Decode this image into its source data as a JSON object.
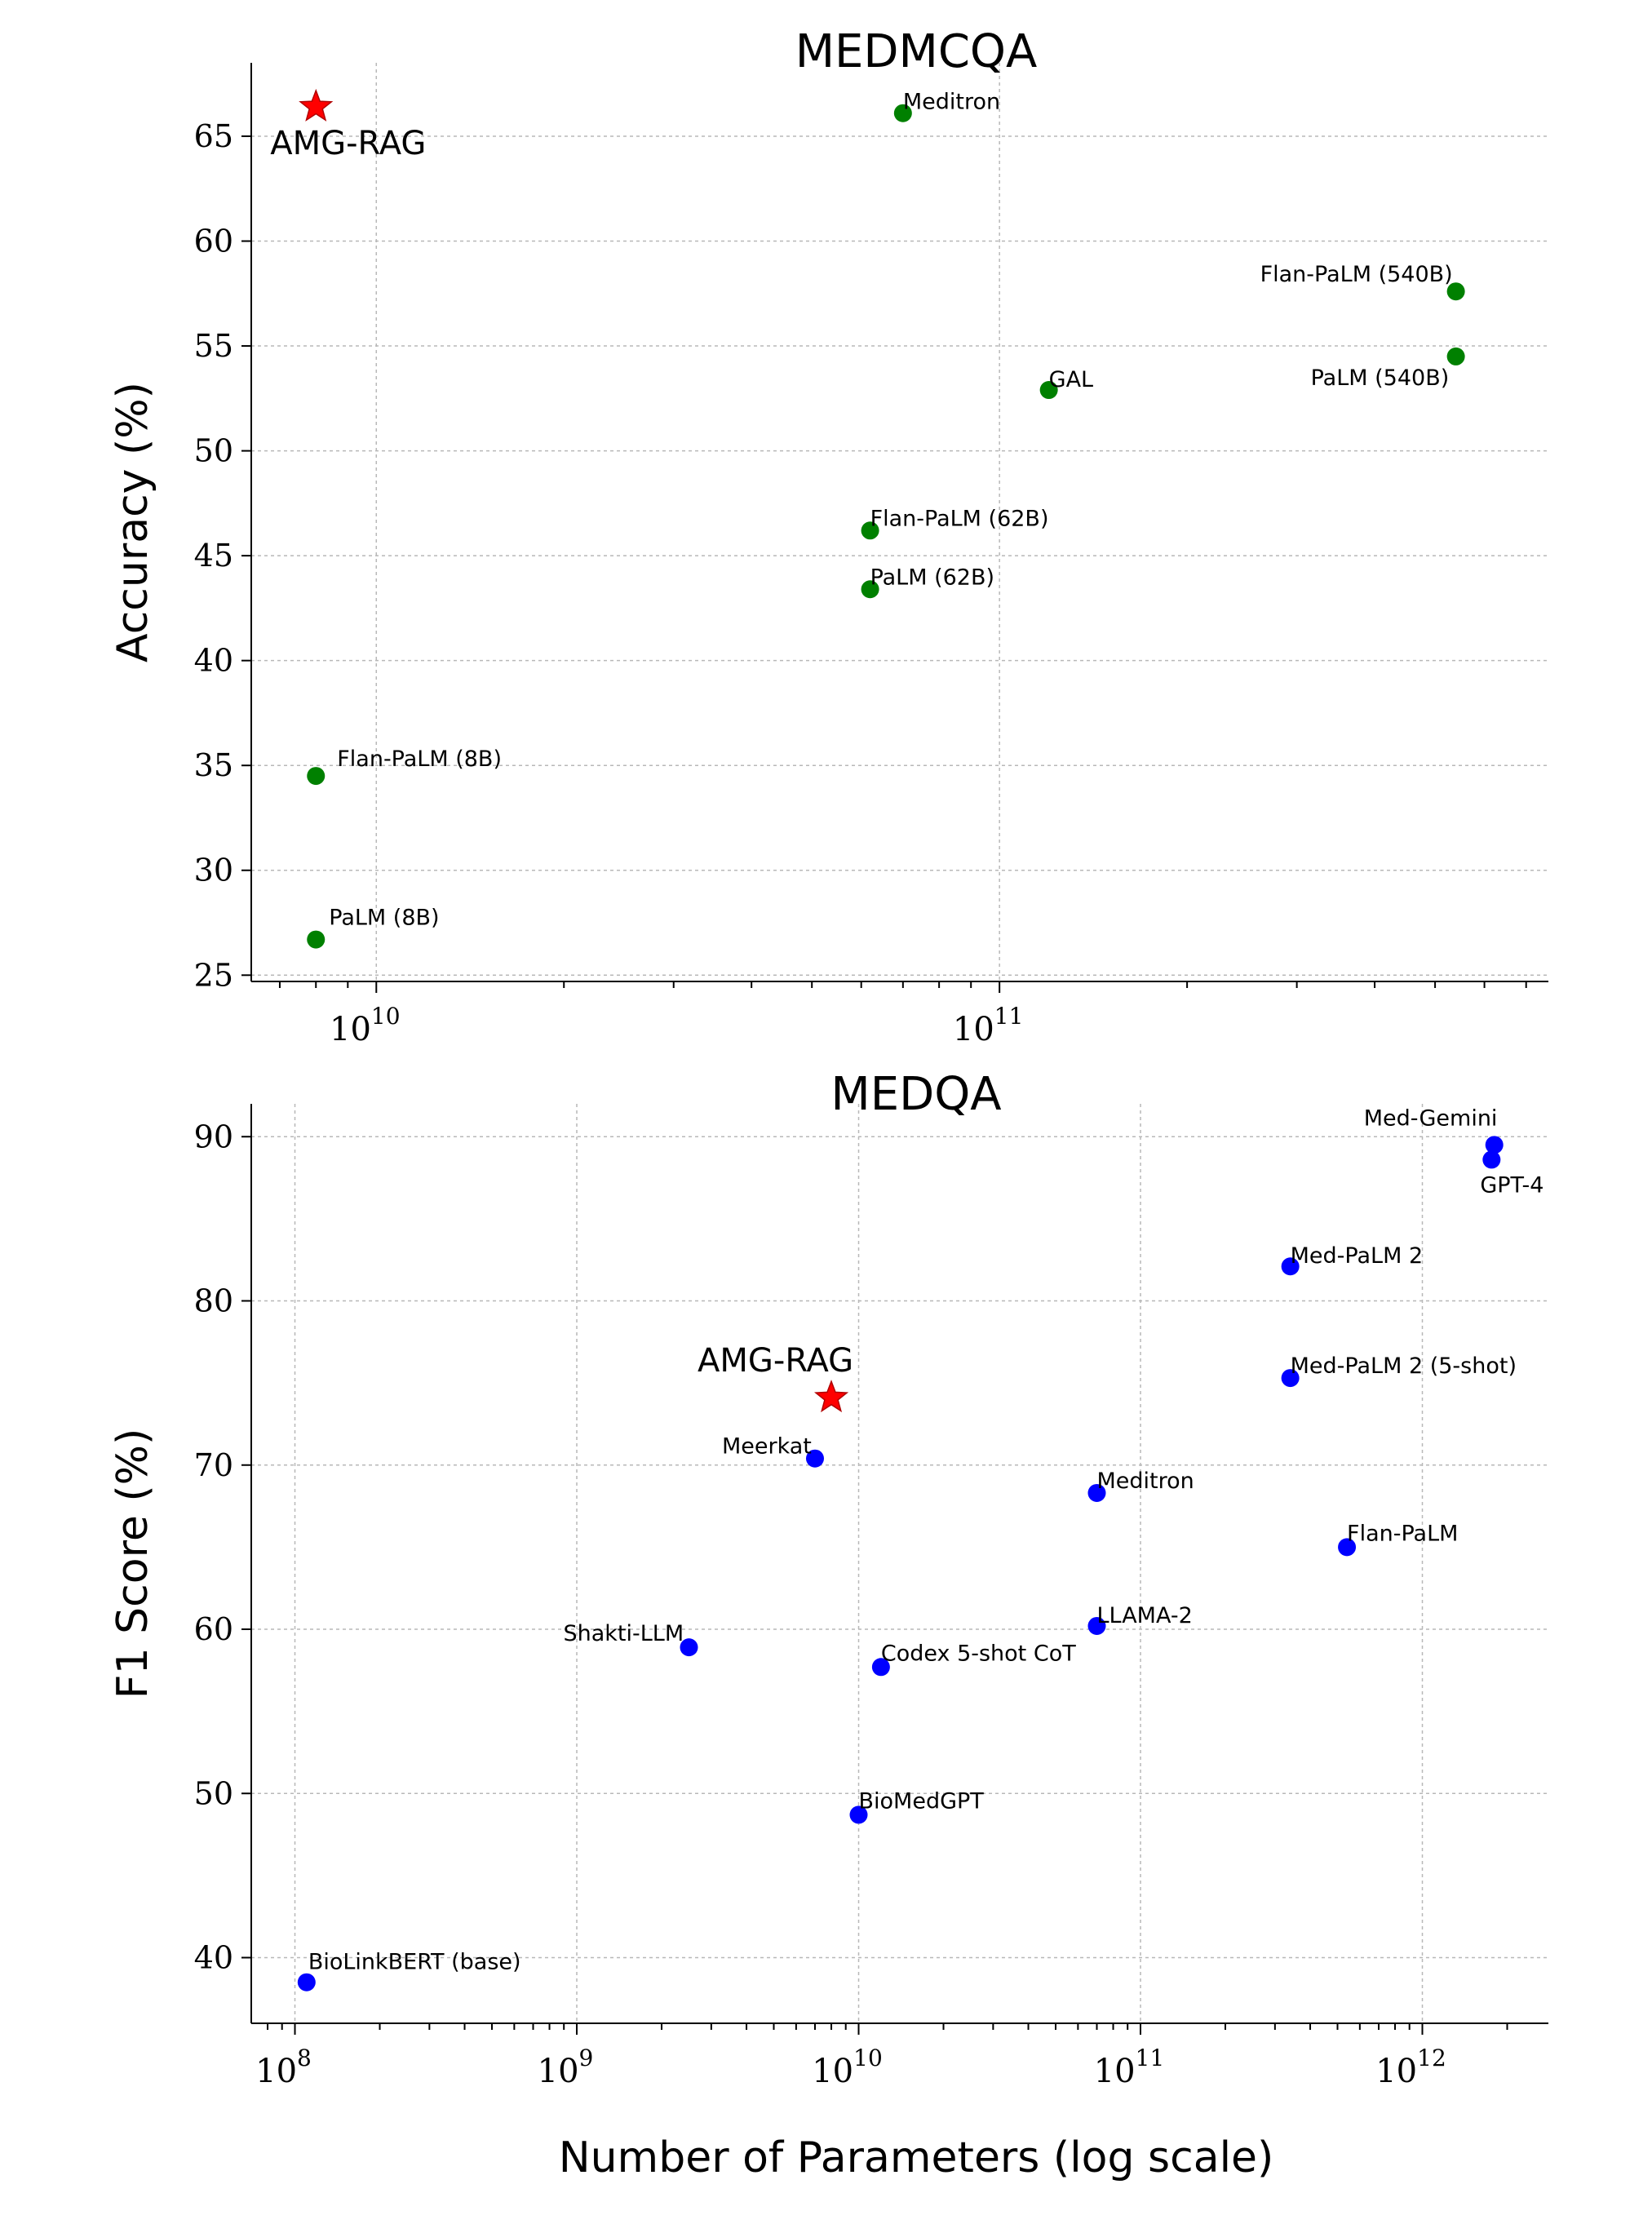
{
  "chart_data": [
    {
      "type": "scatter",
      "title": "MEDMCQA",
      "ylabel": "Accuracy (%)",
      "xlabel": "",
      "xscale": "log",
      "xlim": [
        6300000000.0,
        760000000000.0
      ],
      "ylim": [
        24.7,
        68.5
      ],
      "yticks": [
        "25",
        "30",
        "35",
        "40",
        "45",
        "50",
        "55",
        "60",
        "65"
      ],
      "xticks": [
        {
          "base": "10",
          "exp": "10"
        },
        {
          "base": "10",
          "exp": "11"
        }
      ],
      "marker_color": "#008000",
      "highlight_color": "#ff0000",
      "points": [
        {
          "name": "AMG-RAG",
          "x": 8000000000.0,
          "y": 66.4,
          "marker": "star"
        },
        {
          "name": "Meditron",
          "x": 70000000000.0,
          "y": 66.1
        },
        {
          "name": "Flan-PaLM (540B)",
          "x": 540000000000.0,
          "y": 57.6
        },
        {
          "name": "PaLM (540B)",
          "x": 540000000000.0,
          "y": 54.5
        },
        {
          "name": "GAL",
          "x": 120000000000.0,
          "y": 52.9
        },
        {
          "name": "Flan-PaLM (62B)",
          "x": 62000000000.0,
          "y": 46.2
        },
        {
          "name": "PaLM (62B)",
          "x": 62000000000.0,
          "y": 43.4
        },
        {
          "name": "Flan-PaLM (8B)",
          "x": 8000000000.0,
          "y": 34.5
        },
        {
          "name": "PaLM (8B)",
          "x": 8000000000.0,
          "y": 26.7
        }
      ]
    },
    {
      "type": "scatter",
      "title": "MEDQA",
      "ylabel": "F1 Score (%)",
      "xlabel": "Number of Parameters (log scale)",
      "xscale": "log",
      "xlim": [
        70000000.0,
        2800000000000.0
      ],
      "ylim": [
        36,
        92
      ],
      "yticks": [
        "40",
        "50",
        "60",
        "70",
        "80",
        "90"
      ],
      "xticks": [
        {
          "base": "10",
          "exp": "8"
        },
        {
          "base": "10",
          "exp": "9"
        },
        {
          "base": "10",
          "exp": "10"
        },
        {
          "base": "10",
          "exp": "11"
        },
        {
          "base": "10",
          "exp": "12"
        }
      ],
      "marker_color": "#0000ff",
      "highlight_color": "#ff0000",
      "points": [
        {
          "name": "Med-Gemini",
          "x": 1800000000000.0,
          "y": 89.5
        },
        {
          "name": "GPT-4",
          "x": 1760000000000.0,
          "y": 88.6
        },
        {
          "name": "Med-PaLM 2",
          "x": 340000000000.0,
          "y": 82.1
        },
        {
          "name": "AMG-RAG",
          "x": 8000000000.0,
          "y": 74.1,
          "marker": "star"
        },
        {
          "name": "Med-PaLM 2 (5-shot)",
          "x": 340000000000.0,
          "y": 75.3
        },
        {
          "name": "Meerkat",
          "x": 7000000000.0,
          "y": 70.4
        },
        {
          "name": "Meditron",
          "x": 70000000000.0,
          "y": 68.3
        },
        {
          "name": "Flan-PaLM",
          "x": 540000000000.0,
          "y": 65.0
        },
        {
          "name": "LLAMA-2",
          "x": 70000000000.0,
          "y": 60.2
        },
        {
          "name": "Shakti-LLM",
          "x": 2500000000.0,
          "y": 58.9
        },
        {
          "name": "Codex 5-shot CoT",
          "x": 12000000000.0,
          "y": 57.7
        },
        {
          "name": "BioMedGPT",
          "x": 10000000000.0,
          "y": 48.7
        },
        {
          "name": "BioLinkBERT (base)",
          "x": 110000000.0,
          "y": 38.5
        }
      ]
    }
  ]
}
